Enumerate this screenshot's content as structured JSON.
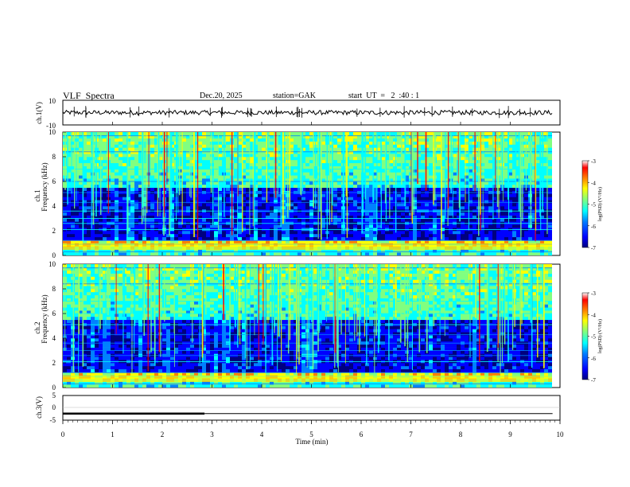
{
  "header": {
    "title": "VLF  Spectra",
    "date": "Dec.20, 2025",
    "station": "station=GAK",
    "start_ut": "start  UT  =   2  :40 : 1"
  },
  "colors": {
    "colormap": [
      "#00007f",
      "#0000ff",
      "#0080ff",
      "#00ffff",
      "#80ff80",
      "#ffff00",
      "#ff8000",
      "#ff0000",
      "#ffffff"
    ]
  },
  "chart_data": [
    {
      "type": "line",
      "id": "ch1-waveform",
      "ylabel": "ch.1(V)",
      "ylim": [
        -10,
        10
      ],
      "ytick_labels": [
        "10",
        "-10"
      ],
      "xlim": [
        0,
        10
      ],
      "series": [
        {
          "values_summary": {
            "mean": 0,
            "approx_min": -2.5,
            "approx_max": 2.5
          }
        }
      ]
    },
    {
      "type": "heatmap",
      "id": "ch1-spectrogram",
      "ylabel_line1": "ch.1",
      "ylabel_line2": "Frequency  (kHz)",
      "ylim": [
        0,
        10
      ],
      "ytick_labels": [
        "0",
        "2",
        "4",
        "6",
        "8",
        "10"
      ],
      "xlim": [
        0,
        9.85
      ],
      "colorbar": {
        "label": "log(PSD) (V²/Hz)",
        "range": [
          -7,
          -3
        ],
        "tick_labels": [
          "-3",
          "-4",
          "-5",
          "-6",
          "-7"
        ]
      }
    },
    {
      "type": "heatmap",
      "id": "ch2-spectrogram",
      "ylabel_line1": "ch.2",
      "ylabel_line2": "Frequency  (kHz)",
      "ylim": [
        0,
        10
      ],
      "ytick_labels": [
        "0",
        "2",
        "4",
        "6",
        "8",
        "10"
      ],
      "xlim": [
        0,
        9.85
      ],
      "colorbar": {
        "label": "log(PSD) (V²/Hz)",
        "range": [
          -7,
          -3
        ],
        "tick_labels": [
          "-3",
          "-4",
          "-5",
          "-6",
          "-7"
        ]
      }
    },
    {
      "type": "line",
      "id": "ch3-signal",
      "ylabel": "ch.3(V)",
      "ylim": [
        -5,
        5
      ],
      "ytick_labels": [
        "5",
        "0",
        "-5"
      ],
      "xlim": [
        0,
        10
      ],
      "xlabel": "Time  (min)",
      "xtick_labels": [
        "0",
        "1",
        "2",
        "3",
        "4",
        "5",
        "6",
        "7",
        "8",
        "9",
        "10"
      ],
      "series": [
        {
          "x": [
            0,
            2.85,
            9.85
          ],
          "values": [
            -2.6,
            -2.6,
            -2.6
          ]
        }
      ]
    }
  ]
}
